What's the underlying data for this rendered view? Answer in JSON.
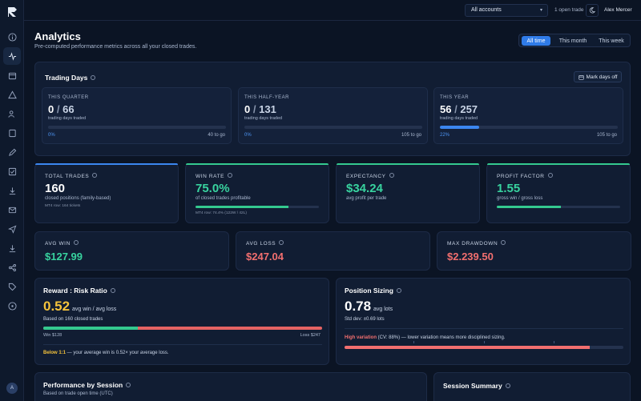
{
  "app": {
    "logo_icon": "logo-r"
  },
  "sidebar": {
    "icons": [
      "info-icon",
      "activity-icon",
      "calendar-icon",
      "alert-triangle-icon",
      "users-icon",
      "book-icon",
      "pen-icon",
      "check-square-icon",
      "download-icon",
      "mail-icon",
      "send-icon",
      "download-icon",
      "share-icon",
      "tag-icon",
      "help-icon"
    ],
    "avatar_initial": "A"
  },
  "topbar": {
    "account_select": "All accounts",
    "open_trade": "1 open trade",
    "user_name": "Alex Mercer"
  },
  "header": {
    "title": "Analytics",
    "subtitle": "Pre-computed performance metrics across all your closed trades.",
    "range_tabs": [
      "All time",
      "This month",
      "This week"
    ],
    "active_range": "All time"
  },
  "trading_days": {
    "title": "Trading Days",
    "mark_button": "Mark days off",
    "cards": [
      {
        "label": "THIS QUARTER",
        "done": "0",
        "total": "66",
        "sub": "trading days traded",
        "pct": "0%",
        "togo": "40 to go",
        "progress": 0
      },
      {
        "label": "THIS HALF-YEAR",
        "done": "0",
        "total": "131",
        "sub": "trading days traded",
        "pct": "0%",
        "togo": "105 to go",
        "progress": 0
      },
      {
        "label": "THIS YEAR",
        "done": "56",
        "total": "257",
        "sub": "trading days traded",
        "pct": "22%",
        "togo": "105 to go",
        "progress": 0.22
      }
    ]
  },
  "stats_row1": [
    {
      "label": "TOTAL TRADES",
      "value": "160",
      "sub": "closed positions (family-based)",
      "sub2": "MT4 row: 164 tickets",
      "accent": "#3b86f0"
    },
    {
      "label": "WIN RATE",
      "value": "75.0%",
      "sub": "of closed trades profitable",
      "sub2": "MT4 row: 74.4% (122W / 42L)",
      "accent": "#34c98f",
      "progress": 0.75
    },
    {
      "label": "EXPECTANCY",
      "value": "$34.24",
      "sub": "avg profit per trade",
      "accent": "#34c98f"
    },
    {
      "label": "PROFIT FACTOR",
      "value": "1.55",
      "sub": "gross win / gross loss",
      "accent": "#34c98f",
      "progress": 0.52
    }
  ],
  "stats_row2": [
    {
      "label": "AVG WIN",
      "value": "$127.99",
      "tone": "green"
    },
    {
      "label": "AVG LOSS",
      "value": "$247.04",
      "tone": "red"
    },
    {
      "label": "MAX DRAWDOWN",
      "value": "$2.239.50",
      "tone": "red"
    }
  ],
  "reward_risk": {
    "title": "Reward : Risk Ratio",
    "value": "0.52",
    "unit": "avg win / avg loss",
    "sub": "Based on 160 closed trades",
    "win_label": "Win $128",
    "loss_label": "Loss $247",
    "win_share": 0.34,
    "note_bold": "Below 1:1",
    "note_rest": " — your average win is 0.52× your average loss."
  },
  "position_sizing": {
    "title": "Position Sizing",
    "value": "0.78",
    "unit": "avg lots",
    "sub": "Std dev: ±0.69 lots",
    "note_bold": "High variation",
    "note_rest": " (CV: 88%) — lower variation means more disciplined sizing.",
    "progress": 0.88
  },
  "session": {
    "title": "Performance by Session",
    "sub": "Based on trade open time (UTC)",
    "summary_title": "Session Summary"
  },
  "colors": {
    "accent": "#2f7be8",
    "green": "#38d39f",
    "red": "#f26f6f",
    "yellow": "#f5c33b"
  }
}
